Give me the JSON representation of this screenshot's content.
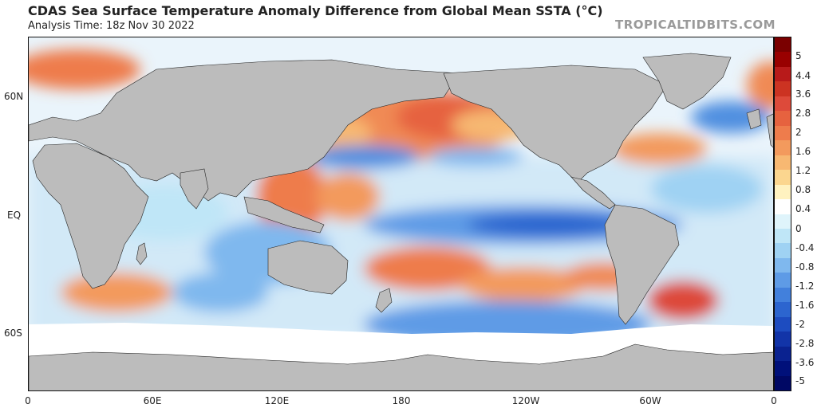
{
  "header": {
    "title": "CDAS Sea Surface Temperature Anomaly Difference from Global Mean SSTA (°C)",
    "subtitle": "Analysis Time: 18z Nov 30 2022",
    "credit": "TROPICALTIDBITS.COM"
  },
  "map": {
    "lat_labels": [
      "60N",
      "EQ",
      "60S"
    ],
    "lon_labels": [
      "0",
      "60E",
      "120E",
      "180",
      "120W",
      "60W",
      "0"
    ],
    "land_color": "#bcbcbc",
    "ice_color": "#ffffff"
  },
  "colorbar": {
    "labels": [
      "5",
      "4.4",
      "3.6",
      "2.8",
      "2",
      "1.6",
      "1.2",
      "0.8",
      "0.4",
      "0",
      "-0.4",
      "-0.8",
      "-1.2",
      "-1.6",
      "-2",
      "-2.8",
      "-3.6",
      "-5"
    ],
    "colors": [
      "#7a0000",
      "#990000",
      "#b81a1a",
      "#cc3322",
      "#dd4a3a",
      "#e6623f",
      "#ee7c4c",
      "#f39a5d",
      "#f7b872",
      "#fbd68f",
      "#fff2c0",
      "#ffffff",
      "#dff4fb",
      "#bfe6f7",
      "#9fd2f3",
      "#7fb8ee",
      "#5e9be6",
      "#4280dc",
      "#2c65cf",
      "#1d4cc0",
      "#1234a8",
      "#0a2290",
      "#00107a",
      "#000864"
    ]
  }
}
